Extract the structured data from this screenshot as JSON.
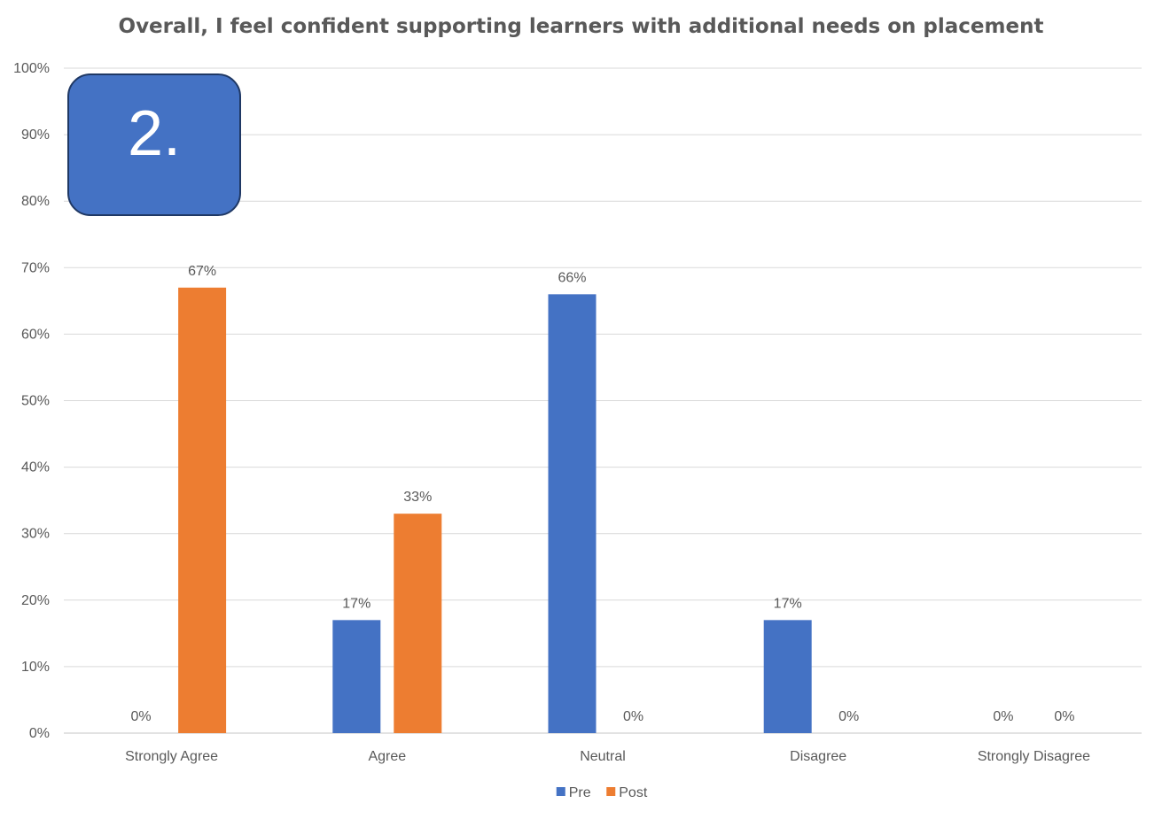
{
  "chart_data": {
    "type": "bar",
    "title": "Overall, I feel confident supporting learners with additional needs on placement",
    "categories": [
      "Strongly Agree",
      "Agree",
      "Neutral",
      "Disagree",
      "Strongly Disagree"
    ],
    "series": [
      {
        "name": "Pre",
        "values": [
          0,
          17,
          66,
          17,
          0
        ],
        "data_labels": [
          "0%",
          "17%",
          "66%",
          "17%",
          "0%"
        ],
        "color": "#4472c4"
      },
      {
        "name": "Post",
        "values": [
          67,
          33,
          0,
          0,
          0
        ],
        "data_labels": [
          "67%",
          "33%",
          "0%",
          "0%",
          "0%"
        ],
        "color": "#ed7d31"
      }
    ],
    "ylim": [
      0,
      100
    ],
    "yticks": [
      0,
      10,
      20,
      30,
      40,
      50,
      60,
      70,
      80,
      90,
      100
    ],
    "ytick_labels": [
      "0%",
      "10%",
      "20%",
      "30%",
      "40%",
      "50%",
      "60%",
      "70%",
      "80%",
      "90%",
      "100%"
    ],
    "grid": true,
    "legend": "bottom",
    "xlabel": "",
    "ylabel": ""
  },
  "badge": {
    "label": "2.",
    "color": "#4472c4",
    "border_color": "#1f3864"
  },
  "colors": {
    "text": "#595959",
    "grid": "#d9d9d9"
  }
}
